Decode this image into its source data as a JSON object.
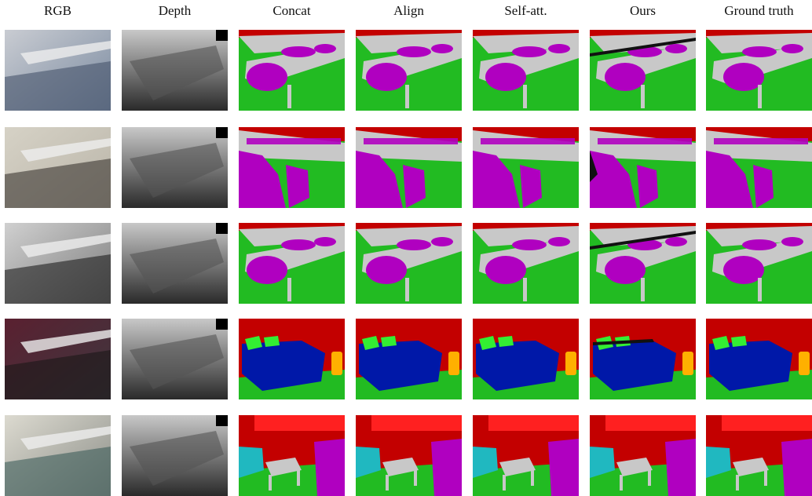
{
  "columns": [
    "RGB",
    "Depth",
    "Concat",
    "Align",
    "Self-att.",
    "Ours",
    "Ground truth"
  ],
  "rows": [
    {
      "scene": "classroom-rows-1"
    },
    {
      "scene": "conference-table"
    },
    {
      "scene": "classroom-rows-2"
    },
    {
      "scene": "bedroom"
    },
    {
      "scene": "living-room"
    }
  ],
  "palette": {
    "wall": "#c30000",
    "floor": "#22bb22",
    "table": "#c8c8c8",
    "chair": "#b000c0",
    "bed": "#0018a8",
    "pillow": "#33ee33",
    "picture": "#ffb000",
    "sofa": "#20b8c0",
    "window": "#ff2020"
  }
}
